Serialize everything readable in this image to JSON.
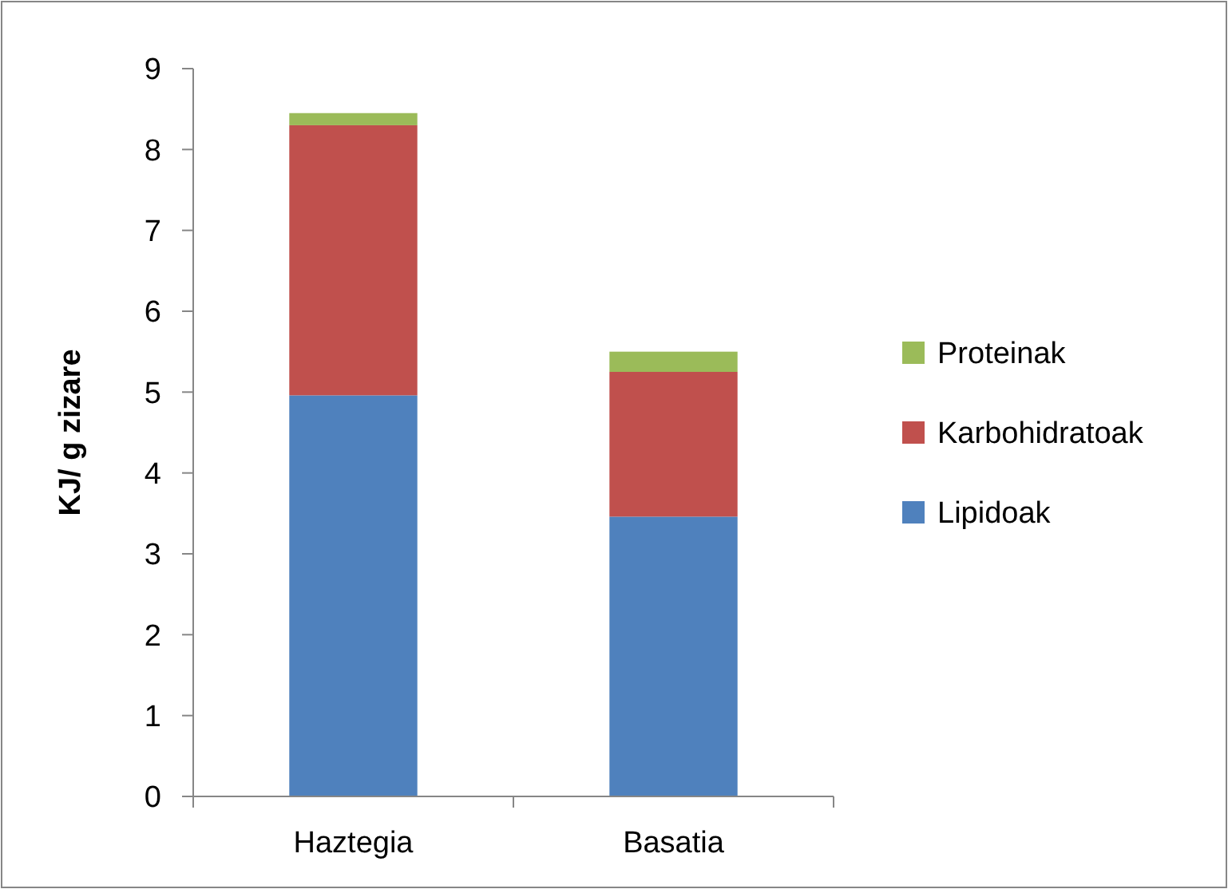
{
  "chart_data": {
    "type": "bar",
    "ylabel": "KJ/ g zizare",
    "categories": [
      "Haztegia",
      "Basatia"
    ],
    "stacked": true,
    "ylim": [
      0,
      9
    ],
    "yticks": [
      0,
      1,
      2,
      3,
      4,
      5,
      6,
      7,
      8,
      9
    ],
    "grid": false,
    "legend": "right",
    "series": [
      {
        "name": "Lipidoak",
        "color": "#4f81bd",
        "values": [
          4.96,
          3.46
        ]
      },
      {
        "name": "Karbohidratoak",
        "color": "#c0504d",
        "values": [
          3.34,
          1.79
        ]
      },
      {
        "name": "Proteinak",
        "color": "#9bbb59",
        "values": [
          0.15,
          0.25
        ]
      }
    ]
  }
}
